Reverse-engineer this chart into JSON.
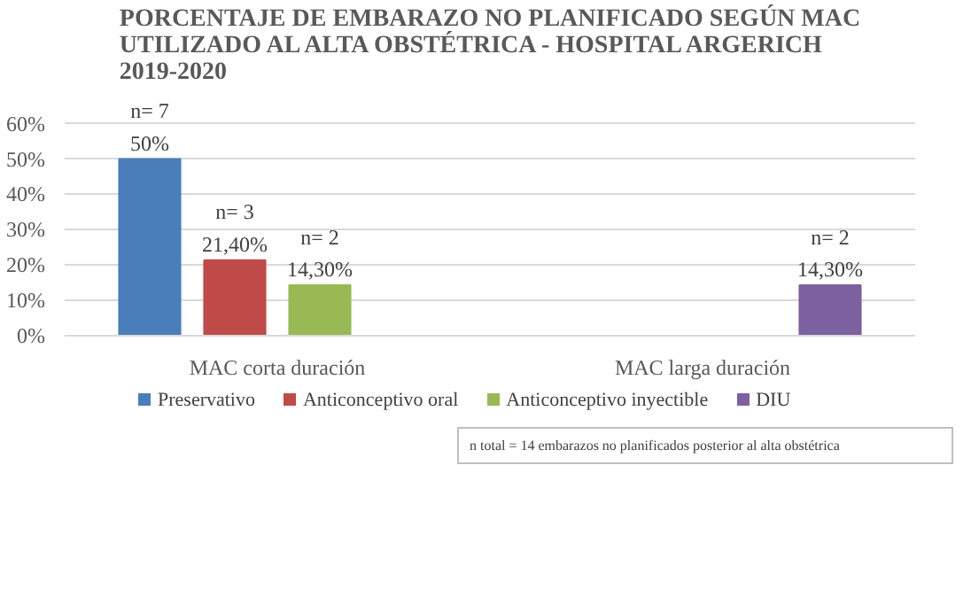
{
  "chart_data": {
    "type": "bar",
    "title": "PORCENTAJE DE EMBARAZO NO PLANIFICADO SEGÚN MAC\nUTILIZADO AL ALTA OBSTÉTRICA - HOSPITAL ARGERICH\n2019-2020",
    "categories": [
      "MAC corta duración",
      "MAC larga duración"
    ],
    "series": [
      {
        "name": "Preservativo",
        "color": "#4a7ebb",
        "values": [
          50,
          null
        ],
        "value_labels": [
          "n= 7\n50%",
          null
        ]
      },
      {
        "name": "Anticonceptivo oral",
        "color": "#be4b48",
        "values": [
          21.4,
          null
        ],
        "value_labels": [
          "n= 3\n21,40%",
          null
        ]
      },
      {
        "name": "Anticonceptivo inyectible",
        "color": "#98b954",
        "values": [
          14.3,
          null
        ],
        "value_labels": [
          "n= 2\n14,30%",
          null
        ]
      },
      {
        "name": "DIU",
        "color": "#7d60a0",
        "values": [
          null,
          14.3
        ],
        "value_labels": [
          null,
          "n= 2\n14,30%"
        ]
      }
    ],
    "ylim": [
      0,
      60
    ],
    "yticks": [
      {
        "value": 0,
        "label": "0%"
      },
      {
        "value": 10,
        "label": "10%"
      },
      {
        "value": 20,
        "label": "20%"
      },
      {
        "value": 30,
        "label": "30%"
      },
      {
        "value": 40,
        "label": "40%"
      },
      {
        "value": 50,
        "label": "50%"
      },
      {
        "value": 60,
        "label": "60%"
      }
    ],
    "grid": "y",
    "legend": "bottom",
    "annotations": [
      "n total = 14 embarazos no planificados posterior al alta obstétrica"
    ]
  }
}
